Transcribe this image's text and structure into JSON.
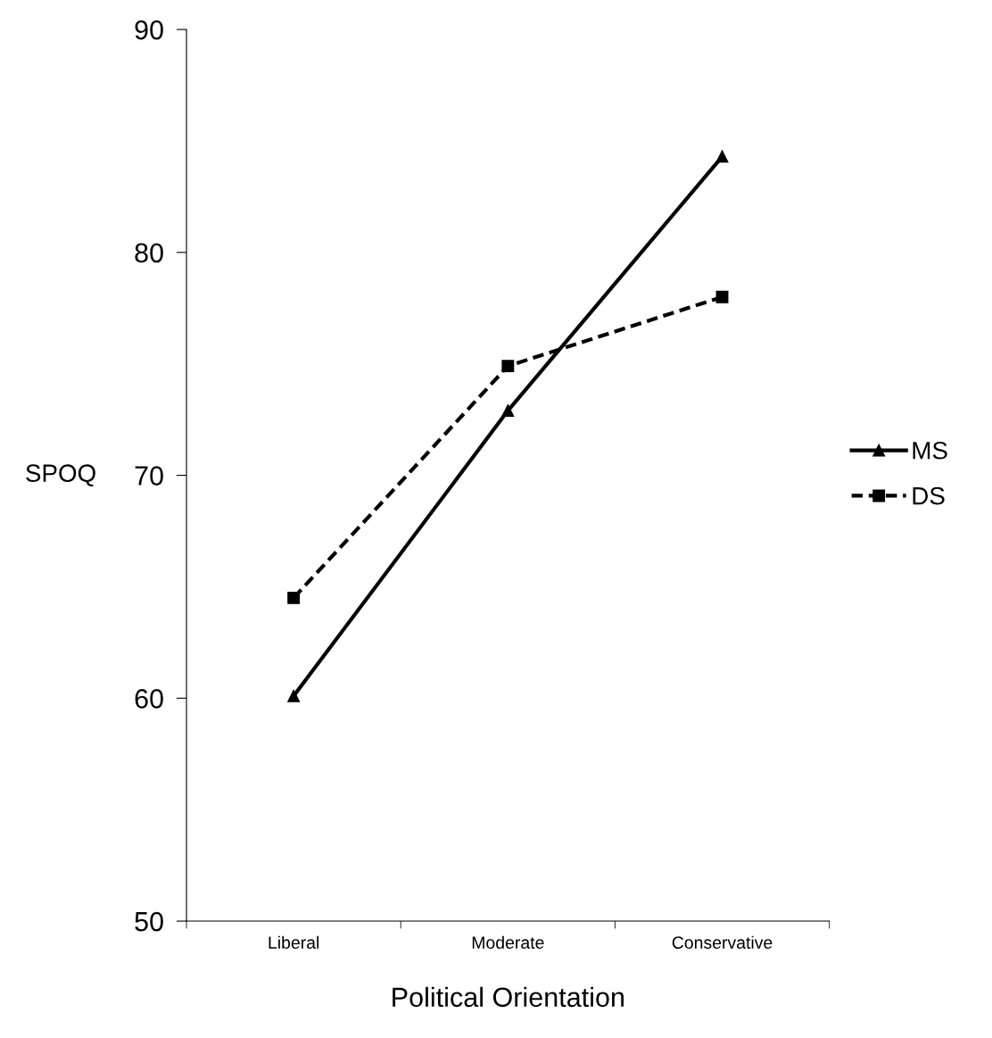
{
  "chart_data": {
    "type": "line",
    "xlabel": "Political Orientation",
    "ylabel": "SPOQ",
    "categories": [
      "Liberal",
      "Moderate",
      "Conservative"
    ],
    "series": [
      {
        "name": "MS",
        "color": "#000000",
        "values": [
          60.1,
          72.9,
          84.3
        ],
        "marker": "triangle",
        "line_style": "solid"
      },
      {
        "name": "DS",
        "color": "#000000",
        "values": [
          64.5,
          74.9,
          78.0
        ],
        "marker": "square",
        "line_style": "dashed"
      }
    ],
    "ylim": [
      50,
      90
    ],
    "yticks": [
      50,
      60,
      70,
      80,
      90
    ],
    "grid": false,
    "legend": "right"
  }
}
